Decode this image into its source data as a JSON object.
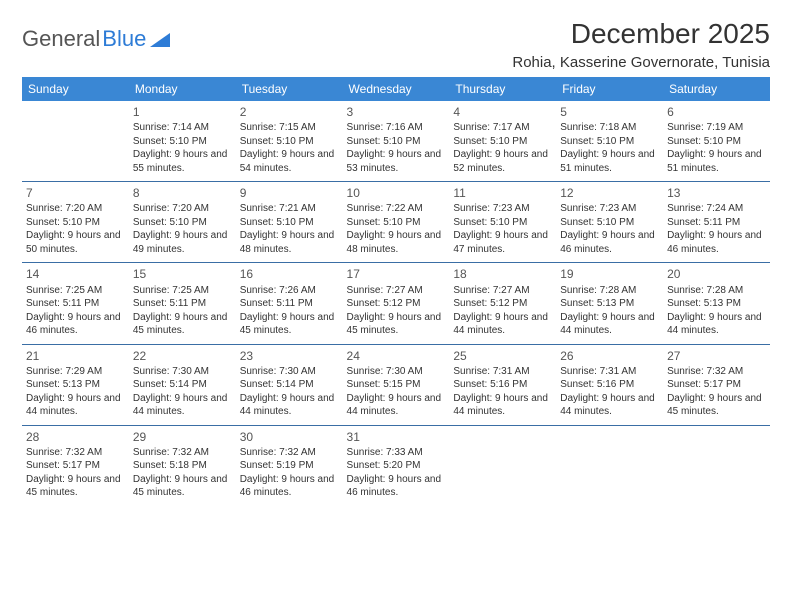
{
  "logo": {
    "text_gray": "General",
    "text_blue": "Blue"
  },
  "title": "December 2025",
  "location": "Rohia, Kasserine Governorate, Tunisia",
  "colors": {
    "header_bg": "#3a87d4",
    "header_text": "#ffffff",
    "row_border": "#3a6ea5",
    "body_text": "#333333",
    "logo_gray": "#555555",
    "logo_blue": "#2e7cd6",
    "background": "#ffffff"
  },
  "typography": {
    "title_fontsize": 28,
    "subtitle_fontsize": 15,
    "dayheader_fontsize": 12,
    "daynum_fontsize": 12,
    "cell_fontsize": 10
  },
  "day_headers": [
    "Sunday",
    "Monday",
    "Tuesday",
    "Wednesday",
    "Thursday",
    "Friday",
    "Saturday"
  ],
  "weeks": [
    [
      {
        "num": "",
        "sunrise": "",
        "sunset": "",
        "daylight": ""
      },
      {
        "num": "1",
        "sunrise": "7:14 AM",
        "sunset": "5:10 PM",
        "daylight": "9 hours and 55 minutes."
      },
      {
        "num": "2",
        "sunrise": "7:15 AM",
        "sunset": "5:10 PM",
        "daylight": "9 hours and 54 minutes."
      },
      {
        "num": "3",
        "sunrise": "7:16 AM",
        "sunset": "5:10 PM",
        "daylight": "9 hours and 53 minutes."
      },
      {
        "num": "4",
        "sunrise": "7:17 AM",
        "sunset": "5:10 PM",
        "daylight": "9 hours and 52 minutes."
      },
      {
        "num": "5",
        "sunrise": "7:18 AM",
        "sunset": "5:10 PM",
        "daylight": "9 hours and 51 minutes."
      },
      {
        "num": "6",
        "sunrise": "7:19 AM",
        "sunset": "5:10 PM",
        "daylight": "9 hours and 51 minutes."
      }
    ],
    [
      {
        "num": "7",
        "sunrise": "7:20 AM",
        "sunset": "5:10 PM",
        "daylight": "9 hours and 50 minutes."
      },
      {
        "num": "8",
        "sunrise": "7:20 AM",
        "sunset": "5:10 PM",
        "daylight": "9 hours and 49 minutes."
      },
      {
        "num": "9",
        "sunrise": "7:21 AM",
        "sunset": "5:10 PM",
        "daylight": "9 hours and 48 minutes."
      },
      {
        "num": "10",
        "sunrise": "7:22 AM",
        "sunset": "5:10 PM",
        "daylight": "9 hours and 48 minutes."
      },
      {
        "num": "11",
        "sunrise": "7:23 AM",
        "sunset": "5:10 PM",
        "daylight": "9 hours and 47 minutes."
      },
      {
        "num": "12",
        "sunrise": "7:23 AM",
        "sunset": "5:10 PM",
        "daylight": "9 hours and 46 minutes."
      },
      {
        "num": "13",
        "sunrise": "7:24 AM",
        "sunset": "5:11 PM",
        "daylight": "9 hours and 46 minutes."
      }
    ],
    [
      {
        "num": "14",
        "sunrise": "7:25 AM",
        "sunset": "5:11 PM",
        "daylight": "9 hours and 46 minutes."
      },
      {
        "num": "15",
        "sunrise": "7:25 AM",
        "sunset": "5:11 PM",
        "daylight": "9 hours and 45 minutes."
      },
      {
        "num": "16",
        "sunrise": "7:26 AM",
        "sunset": "5:11 PM",
        "daylight": "9 hours and 45 minutes."
      },
      {
        "num": "17",
        "sunrise": "7:27 AM",
        "sunset": "5:12 PM",
        "daylight": "9 hours and 45 minutes."
      },
      {
        "num": "18",
        "sunrise": "7:27 AM",
        "sunset": "5:12 PM",
        "daylight": "9 hours and 44 minutes."
      },
      {
        "num": "19",
        "sunrise": "7:28 AM",
        "sunset": "5:13 PM",
        "daylight": "9 hours and 44 minutes."
      },
      {
        "num": "20",
        "sunrise": "7:28 AM",
        "sunset": "5:13 PM",
        "daylight": "9 hours and 44 minutes."
      }
    ],
    [
      {
        "num": "21",
        "sunrise": "7:29 AM",
        "sunset": "5:13 PM",
        "daylight": "9 hours and 44 minutes."
      },
      {
        "num": "22",
        "sunrise": "7:30 AM",
        "sunset": "5:14 PM",
        "daylight": "9 hours and 44 minutes."
      },
      {
        "num": "23",
        "sunrise": "7:30 AM",
        "sunset": "5:14 PM",
        "daylight": "9 hours and 44 minutes."
      },
      {
        "num": "24",
        "sunrise": "7:30 AM",
        "sunset": "5:15 PM",
        "daylight": "9 hours and 44 minutes."
      },
      {
        "num": "25",
        "sunrise": "7:31 AM",
        "sunset": "5:16 PM",
        "daylight": "9 hours and 44 minutes."
      },
      {
        "num": "26",
        "sunrise": "7:31 AM",
        "sunset": "5:16 PM",
        "daylight": "9 hours and 44 minutes."
      },
      {
        "num": "27",
        "sunrise": "7:32 AM",
        "sunset": "5:17 PM",
        "daylight": "9 hours and 45 minutes."
      }
    ],
    [
      {
        "num": "28",
        "sunrise": "7:32 AM",
        "sunset": "5:17 PM",
        "daylight": "9 hours and 45 minutes."
      },
      {
        "num": "29",
        "sunrise": "7:32 AM",
        "sunset": "5:18 PM",
        "daylight": "9 hours and 45 minutes."
      },
      {
        "num": "30",
        "sunrise": "7:32 AM",
        "sunset": "5:19 PM",
        "daylight": "9 hours and 46 minutes."
      },
      {
        "num": "31",
        "sunrise": "7:33 AM",
        "sunset": "5:20 PM",
        "daylight": "9 hours and 46 minutes."
      },
      {
        "num": "",
        "sunrise": "",
        "sunset": "",
        "daylight": ""
      },
      {
        "num": "",
        "sunrise": "",
        "sunset": "",
        "daylight": ""
      },
      {
        "num": "",
        "sunrise": "",
        "sunset": "",
        "daylight": ""
      }
    ]
  ],
  "labels": {
    "sunrise": "Sunrise:",
    "sunset": "Sunset:",
    "daylight": "Daylight:"
  }
}
